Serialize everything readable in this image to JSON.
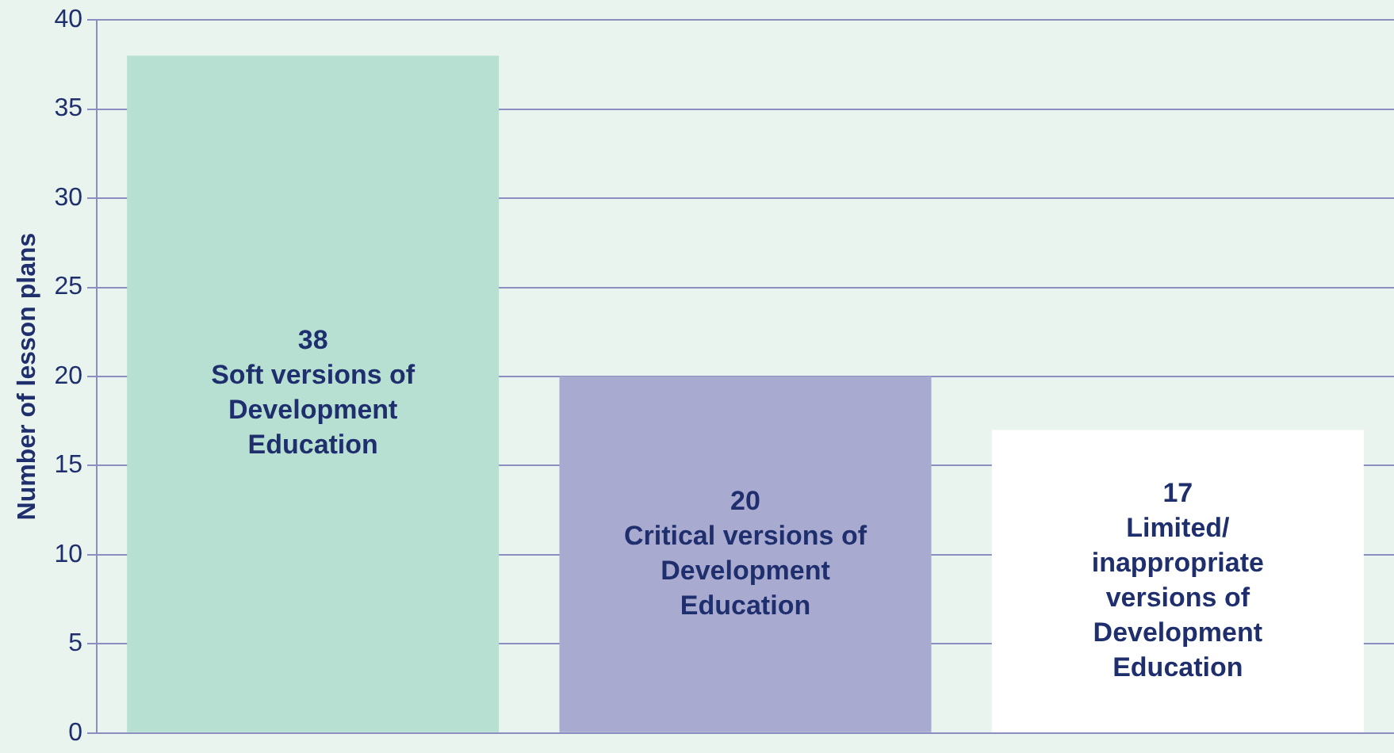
{
  "chart_data": {
    "type": "bar",
    "ylabel": "Number of lesson plans",
    "categories": [
      "Soft versions of Development Education",
      "Critical versions of Development Education",
      "Limited/ inappropriate versions of Development Education"
    ],
    "values": [
      38,
      20,
      17
    ],
    "colors": [
      "#b8e0d2",
      "#a8aad0",
      "#ffffff"
    ],
    "ylim": [
      0,
      40
    ],
    "yticks": [
      0,
      5,
      10,
      15,
      20,
      25,
      30,
      35,
      40
    ],
    "grid": "y",
    "legend": false,
    "data_labels": true,
    "tick_labels": "y"
  }
}
